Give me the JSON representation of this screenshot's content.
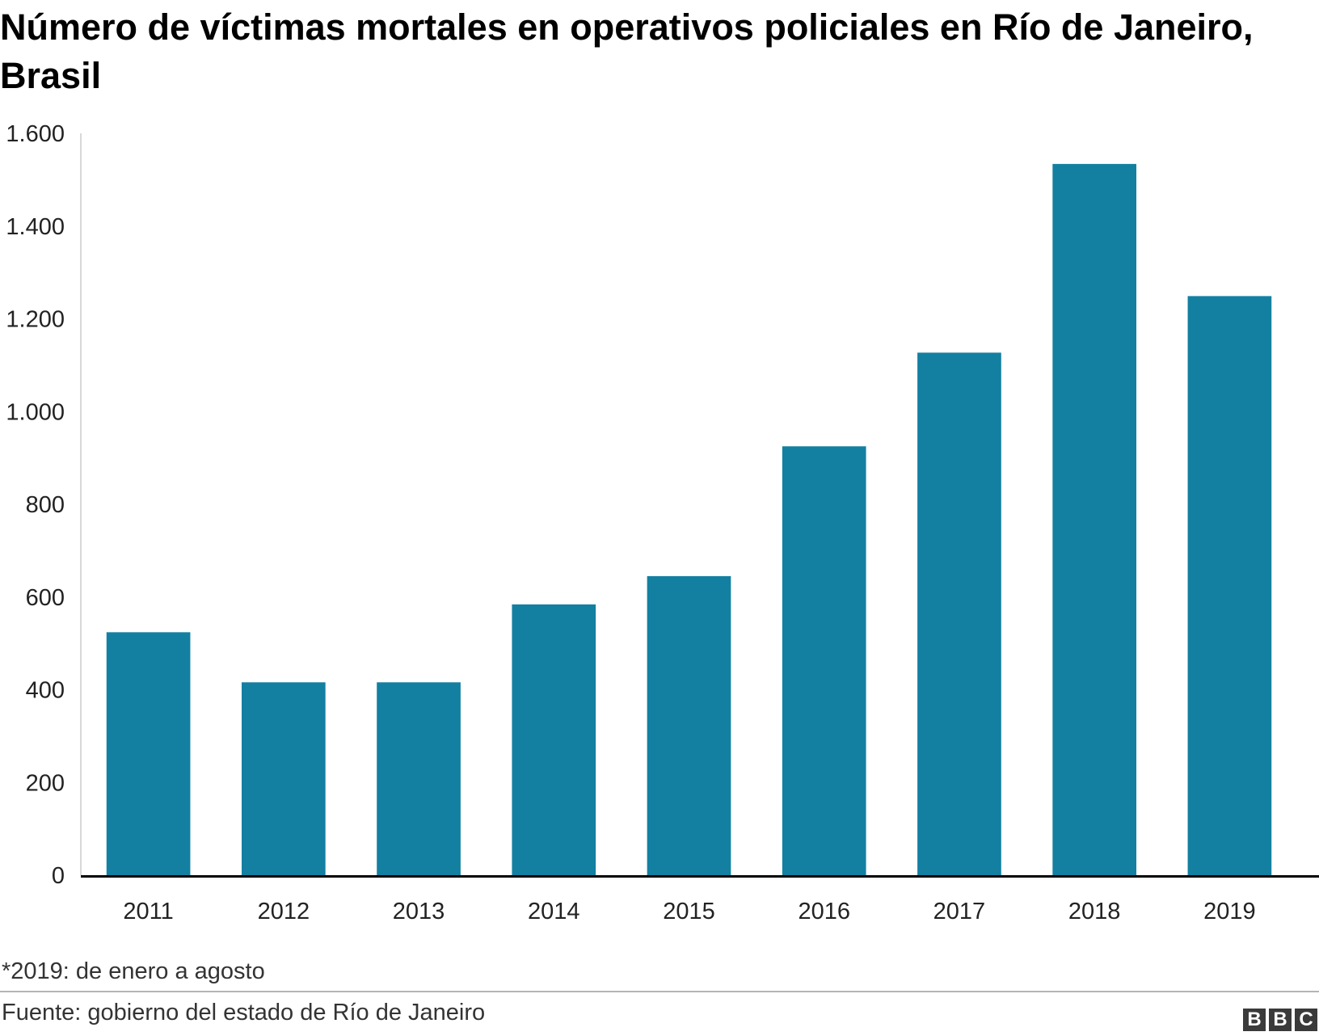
{
  "title": "Número de víctimas mortales en operativos policiales en Río de Janeiro, Brasil",
  "note": "*2019: de enero a agosto",
  "source": "Fuente: gobierno del estado de Río de Janeiro",
  "logo": [
    "B",
    "B",
    "C"
  ],
  "colors": {
    "bar": "#1380a1",
    "axis": "#000000",
    "text": "#222222"
  },
  "chart_data": {
    "type": "bar",
    "categories": [
      "2011",
      "2012",
      "2013",
      "2014",
      "2015",
      "2016",
      "2017",
      "2018",
      "2019"
    ],
    "values": [
      524,
      416,
      416,
      584,
      645,
      925,
      1127,
      1534,
      1249
    ],
    "ylim": [
      0,
      1600
    ],
    "yticks": [
      0,
      200,
      400,
      600,
      800,
      1000,
      1200,
      1400,
      1600
    ],
    "ytick_labels": [
      "0",
      "200",
      "400",
      "600",
      "800",
      "1.000",
      "1.200",
      "1.400",
      "1.600"
    ],
    "grid": false,
    "legend": "none"
  }
}
